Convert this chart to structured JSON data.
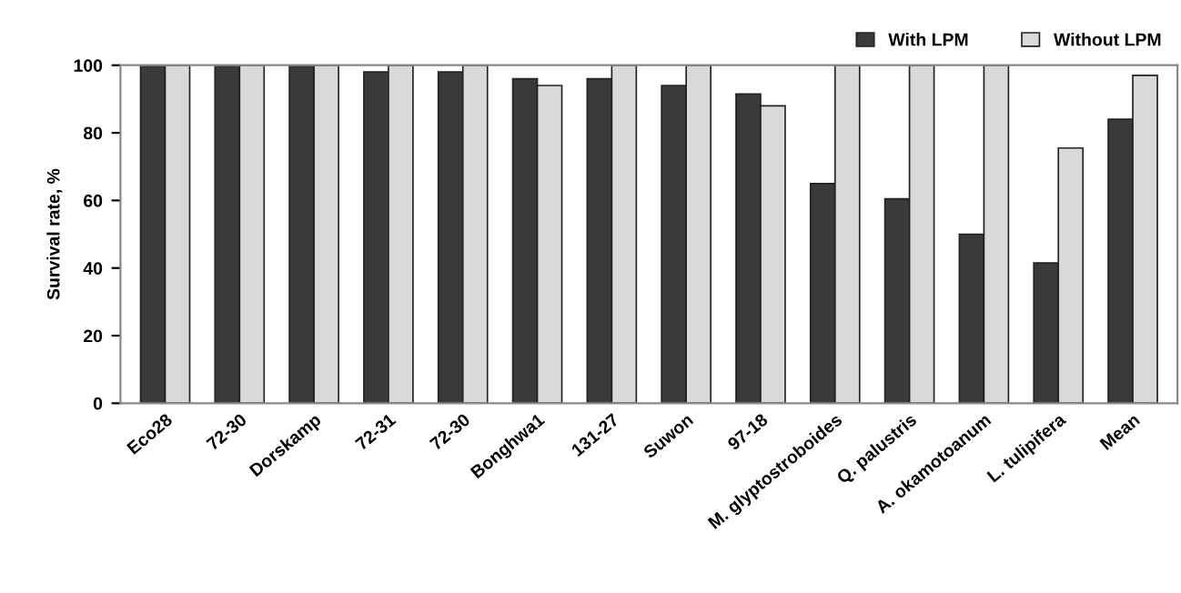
{
  "chart_data": {
    "type": "bar",
    "ylabel": "Survival rate, %",
    "categories": [
      "Eco28",
      "72-30",
      "Dorskamp",
      "72-31",
      "72-30",
      "Bonghwa1",
      "131-27",
      "Suwon",
      "97-18",
      "M. glyptostroboides",
      "Q. palustris",
      "A. okamotoanum",
      "L. tulipifera",
      "Mean"
    ],
    "series": [
      {
        "name": "With LPM",
        "color": "#3a3a3a",
        "values": [
          100,
          100,
          100,
          98,
          98,
          96,
          96,
          94,
          91.5,
          65,
          60.5,
          50,
          41.5,
          84
        ]
      },
      {
        "name": "Without LPM",
        "color": "#d9d9d9",
        "values": [
          100,
          100,
          100,
          100,
          100,
          94,
          100,
          100,
          88,
          100,
          100,
          100,
          75.5,
          97
        ]
      }
    ],
    "ylim": [
      0,
      100
    ],
    "yticks": [
      0,
      20,
      40,
      60,
      80,
      100
    ],
    "grid": false,
    "legend": "top right"
  }
}
